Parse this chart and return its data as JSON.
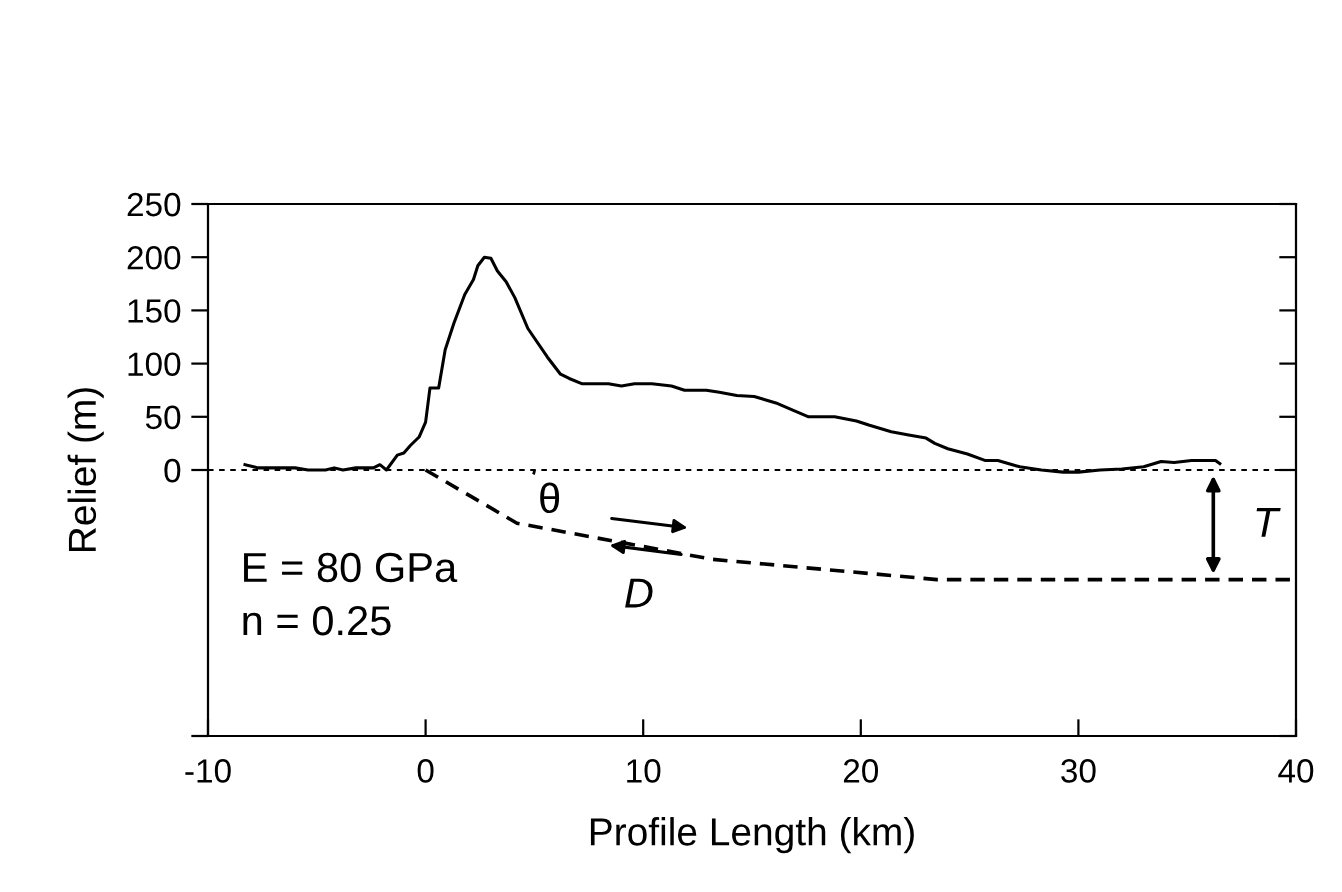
{
  "chart_data": {
    "type": "line",
    "xlabel": "Profile Length (km)",
    "ylabel": "Relief (m)",
    "xlim": [
      -10,
      40
    ],
    "xticks": [
      -10,
      0,
      10,
      20,
      30,
      40
    ],
    "ylim": [
      -250,
      250
    ],
    "yticks": [
      {
        "value": -250,
        "label": null
      },
      0,
      50,
      100,
      150,
      200,
      250
    ],
    "grid": false,
    "legend": false,
    "marker": "none",
    "ref_lines": [
      {
        "axis": "y",
        "value": 0,
        "line_style": "dotted",
        "color": "#000000"
      }
    ],
    "series": [
      {
        "color": "#000000",
        "line_style": "solid",
        "x": [
          -8.3,
          -7.7,
          -6,
          -5.4,
          -4.6,
          -4.2,
          -3.8,
          -3.2,
          -2.4,
          -2.1,
          -1.8,
          -1.3,
          -1.0,
          -0.7,
          -0.3,
          0.0,
          0.2,
          0.6,
          0.9,
          1.3,
          1.8,
          2.2,
          2.4,
          2.7,
          3.0,
          3.3,
          3.7,
          4.1,
          4.7,
          5.6,
          6.2,
          6.6,
          7.2,
          8.4,
          9.0,
          9.6,
          10.4,
          11.3,
          11.9,
          12.9,
          13.5,
          14.3,
          15.1,
          16.1,
          16.9,
          17.6,
          18.8,
          19.8,
          20.4,
          21.4,
          22.2,
          23.0,
          23.4,
          24.0,
          24.9,
          25.7,
          26.3,
          27.3,
          28.3,
          29.3,
          30.0,
          31.0,
          32.0,
          33.0,
          33.8,
          34.4,
          35.2,
          36.3,
          36.5
        ],
        "values": [
          5,
          2,
          2,
          0,
          0,
          2,
          0,
          2,
          2,
          5,
          0,
          14,
          16,
          23,
          31,
          45,
          77,
          77,
          113,
          138,
          165,
          179,
          192,
          200,
          199,
          187,
          177,
          162,
          133,
          106,
          90,
          86,
          81,
          81,
          79,
          81,
          81,
          79,
          75,
          75,
          73,
          70,
          69,
          63,
          56,
          50,
          50,
          46,
          42,
          36,
          33,
          30,
          25,
          20,
          15,
          9,
          9,
          3,
          0,
          -2,
          -2,
          0,
          1,
          3,
          8,
          7,
          9,
          9,
          6
        ]
      },
      {
        "color": "#000000",
        "line_style": "dashed",
        "x": [
          0,
          4.2,
          13.2,
          23.5,
          40
        ],
        "values": [
          0,
          -50,
          -84,
          -103,
          -103
        ]
      }
    ],
    "annotations": [
      "θ",
      "D",
      "T",
      "E = 80 GPa",
      "n = 0.25"
    ]
  }
}
